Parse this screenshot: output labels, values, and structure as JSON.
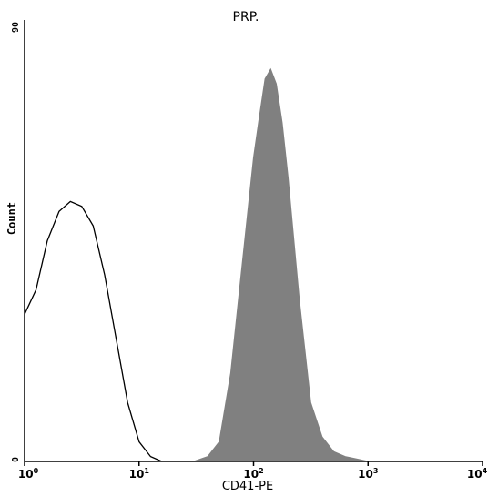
{
  "chart_data": {
    "type": "area",
    "title": "PRP.",
    "xlabel": "CD41-PE",
    "ylabel": "Count",
    "xscale": "log",
    "xlim": [
      1,
      10000
    ],
    "ylim": [
      0,
      90
    ],
    "xticks": [
      {
        "base": "10",
        "exp": "0"
      },
      {
        "base": "10",
        "exp": "1"
      },
      {
        "base": "10",
        "exp": "2"
      },
      {
        "base": "10",
        "exp": "3"
      },
      {
        "base": "10",
        "exp": "4"
      }
    ],
    "yticks": [
      {
        "value": 0,
        "label": "0"
      },
      {
        "value": 90,
        "label": "90"
      }
    ],
    "grid": false,
    "series": [
      {
        "style": "outline",
        "color": "#000000",
        "x": [
          1.0,
          1.26,
          1.58,
          2.0,
          2.51,
          3.16,
          3.98,
          5.01,
          6.31,
          7.94,
          10.0,
          12.6,
          15.8
        ],
        "y": [
          30,
          35,
          45,
          51,
          53,
          52,
          48,
          38,
          25,
          12,
          4,
          1,
          0
        ]
      },
      {
        "style": "filled",
        "color": "#808080",
        "x": [
          30,
          39.8,
          50.1,
          63.1,
          79.4,
          100,
          112,
          126,
          141,
          158,
          178,
          200,
          251,
          316,
          398,
          501,
          631,
          794,
          1000
        ],
        "y": [
          0,
          1,
          4,
          18,
          40,
          62,
          70,
          78,
          80,
          77,
          69,
          58,
          33,
          12,
          5,
          2,
          1,
          0.5,
          0
        ]
      }
    ]
  }
}
